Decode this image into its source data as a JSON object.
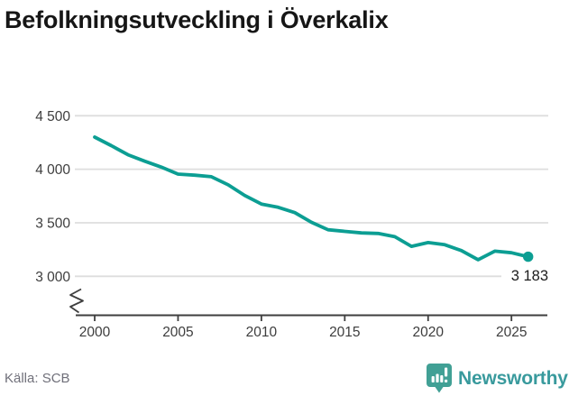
{
  "header": {
    "title": "Befolkningsutveckling i Överkalix"
  },
  "footer": {
    "source": "Källa: SCB",
    "brand": "Newsworthy"
  },
  "colors": {
    "line": "#0c9e93",
    "grid": "#dedede",
    "axis": "#3f3f3f",
    "tick_text": "#3d3d3d",
    "annotation_text": "#1c1c1c",
    "brand_icon": "#41a095",
    "brand_text": "#399a9d"
  },
  "chart_data": {
    "type": "line",
    "title": "Befolkningsutveckling i Överkalix",
    "series_name": "Befolkning",
    "x": [
      2000,
      2001,
      2002,
      2003,
      2004,
      2005,
      2006,
      2007,
      2008,
      2009,
      2010,
      2011,
      2012,
      2013,
      2014,
      2015,
      2016,
      2017,
      2018,
      2019,
      2020,
      2021,
      2022,
      2023,
      2024,
      2025,
      2026
    ],
    "values": [
      4300,
      4220,
      4135,
      4075,
      4020,
      3955,
      3945,
      3930,
      3855,
      3755,
      3675,
      3645,
      3595,
      3505,
      3435,
      3420,
      3405,
      3400,
      3370,
      3280,
      3315,
      3295,
      3240,
      3155,
      3235,
      3220,
      3183
    ],
    "xticks": [
      2000,
      2005,
      2010,
      2015,
      2020,
      2025
    ],
    "xtick_labels": [
      "2000",
      "2005",
      "2010",
      "2015",
      "2020",
      "2025"
    ],
    "yticks": [
      3000,
      3500,
      4000,
      4500
    ],
    "ytick_labels": [
      "3 000",
      "3 500",
      "4 000",
      "4 500"
    ],
    "ylim": [
      3000,
      4500
    ],
    "xlim": [
      2000,
      2026
    ],
    "grid": "horizontal-only",
    "axis_break": true,
    "legend": "none",
    "last_value": 3183,
    "last_value_label": "3 183",
    "marker_last_point": true
  }
}
